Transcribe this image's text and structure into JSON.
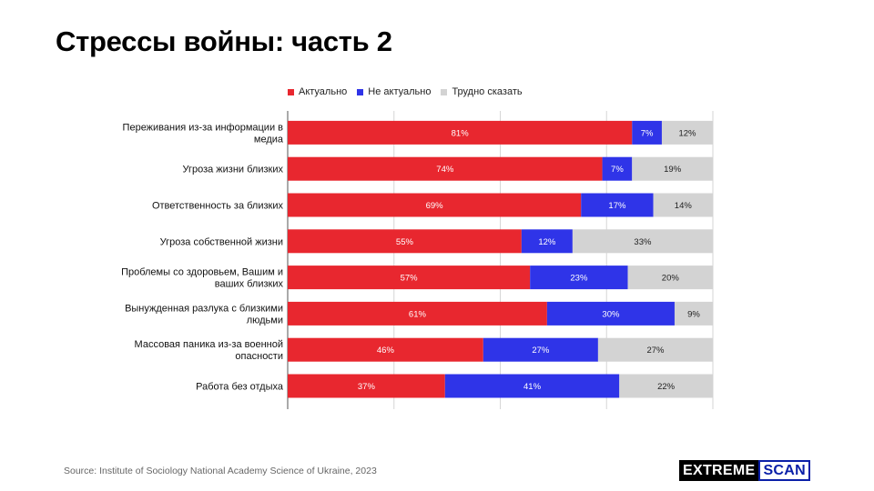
{
  "page": {
    "title": "Стрессы войны: часть 2",
    "source": "Source: Institute of Sociology National Academy Science of Ukraine, 2023",
    "logo": {
      "part1": "EXTREME",
      "part2": "SCAN"
    }
  },
  "chart_data": {
    "type": "bar",
    "orientation": "horizontal",
    "stacked": true,
    "percent_stacked": true,
    "legend_position": "top",
    "xlim": [
      0,
      100
    ],
    "grid": true,
    "categories": [
      "Переживания из-за информации в медиа",
      "Угроза жизни близких",
      "Ответственность за близких",
      "Угроза собственной жизни",
      "Проблемы со здоровьем, Вашим и ваших близких",
      "Вынужденная разлука с близкими людьми",
      "Массовая паника из-за военной опасности",
      "Работа без отдыха"
    ],
    "series": [
      {
        "name": "Актуально",
        "color": "#e8272f",
        "label_color": "#ffffff",
        "values": [
          81,
          74,
          69,
          55,
          57,
          61,
          46,
          37
        ]
      },
      {
        "name": "Не актуально",
        "color": "#2f34e8",
        "label_color": "#ffffff",
        "values": [
          7,
          7,
          17,
          12,
          23,
          30,
          27,
          41
        ]
      },
      {
        "name": "Трудно сказать",
        "color": "#d3d3d3",
        "label_color": "#222222",
        "values": [
          12,
          19,
          14,
          33,
          20,
          9,
          27,
          22
        ]
      }
    ]
  }
}
